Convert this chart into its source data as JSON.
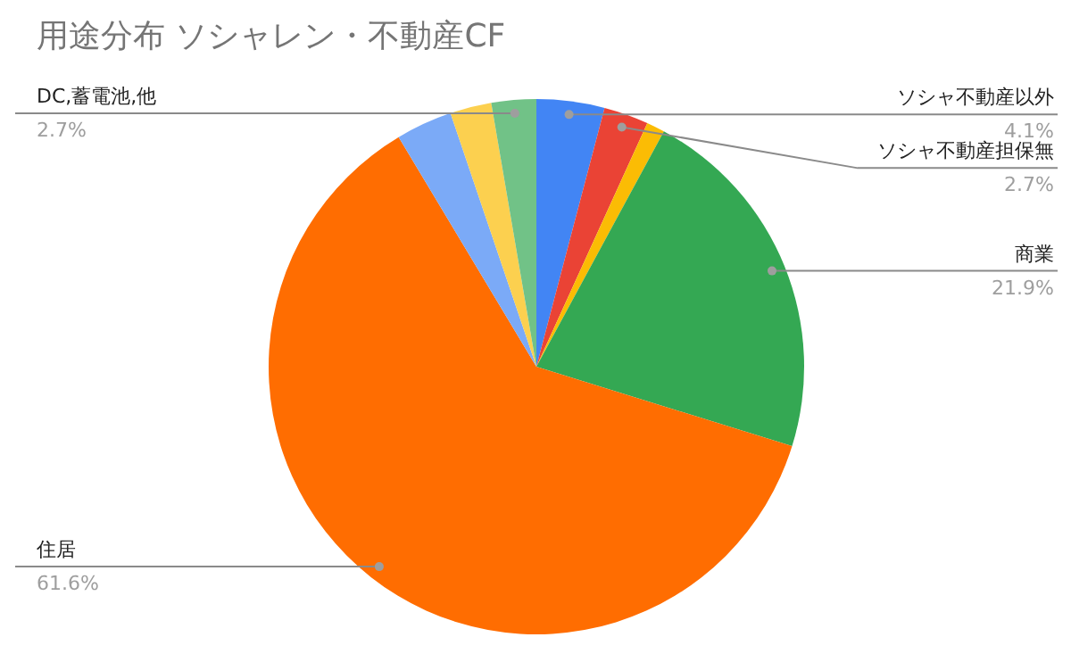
{
  "chart_data": {
    "type": "pie",
    "title": "用途分布  ソシャレン・不動産CF",
    "categories": [
      "ソシャ不動産以外",
      "ソシャ不動産担保無",
      null,
      "商業",
      "住居",
      null,
      null,
      "DC,蓄電池,他"
    ],
    "values": [
      4.1,
      2.7,
      1.1,
      21.9,
      61.6,
      3.4,
      2.5,
      2.7
    ],
    "colors": [
      "#4285f4",
      "#ea4335",
      "#fbbc04",
      "#34a853",
      "#ff6d01",
      "#7baaf7",
      "#fcd04f",
      "#71c287"
    ],
    "value_labels": [
      "4.1%",
      "2.7%",
      null,
      "21.9%",
      "61.6%",
      null,
      null,
      "2.7%"
    ]
  }
}
